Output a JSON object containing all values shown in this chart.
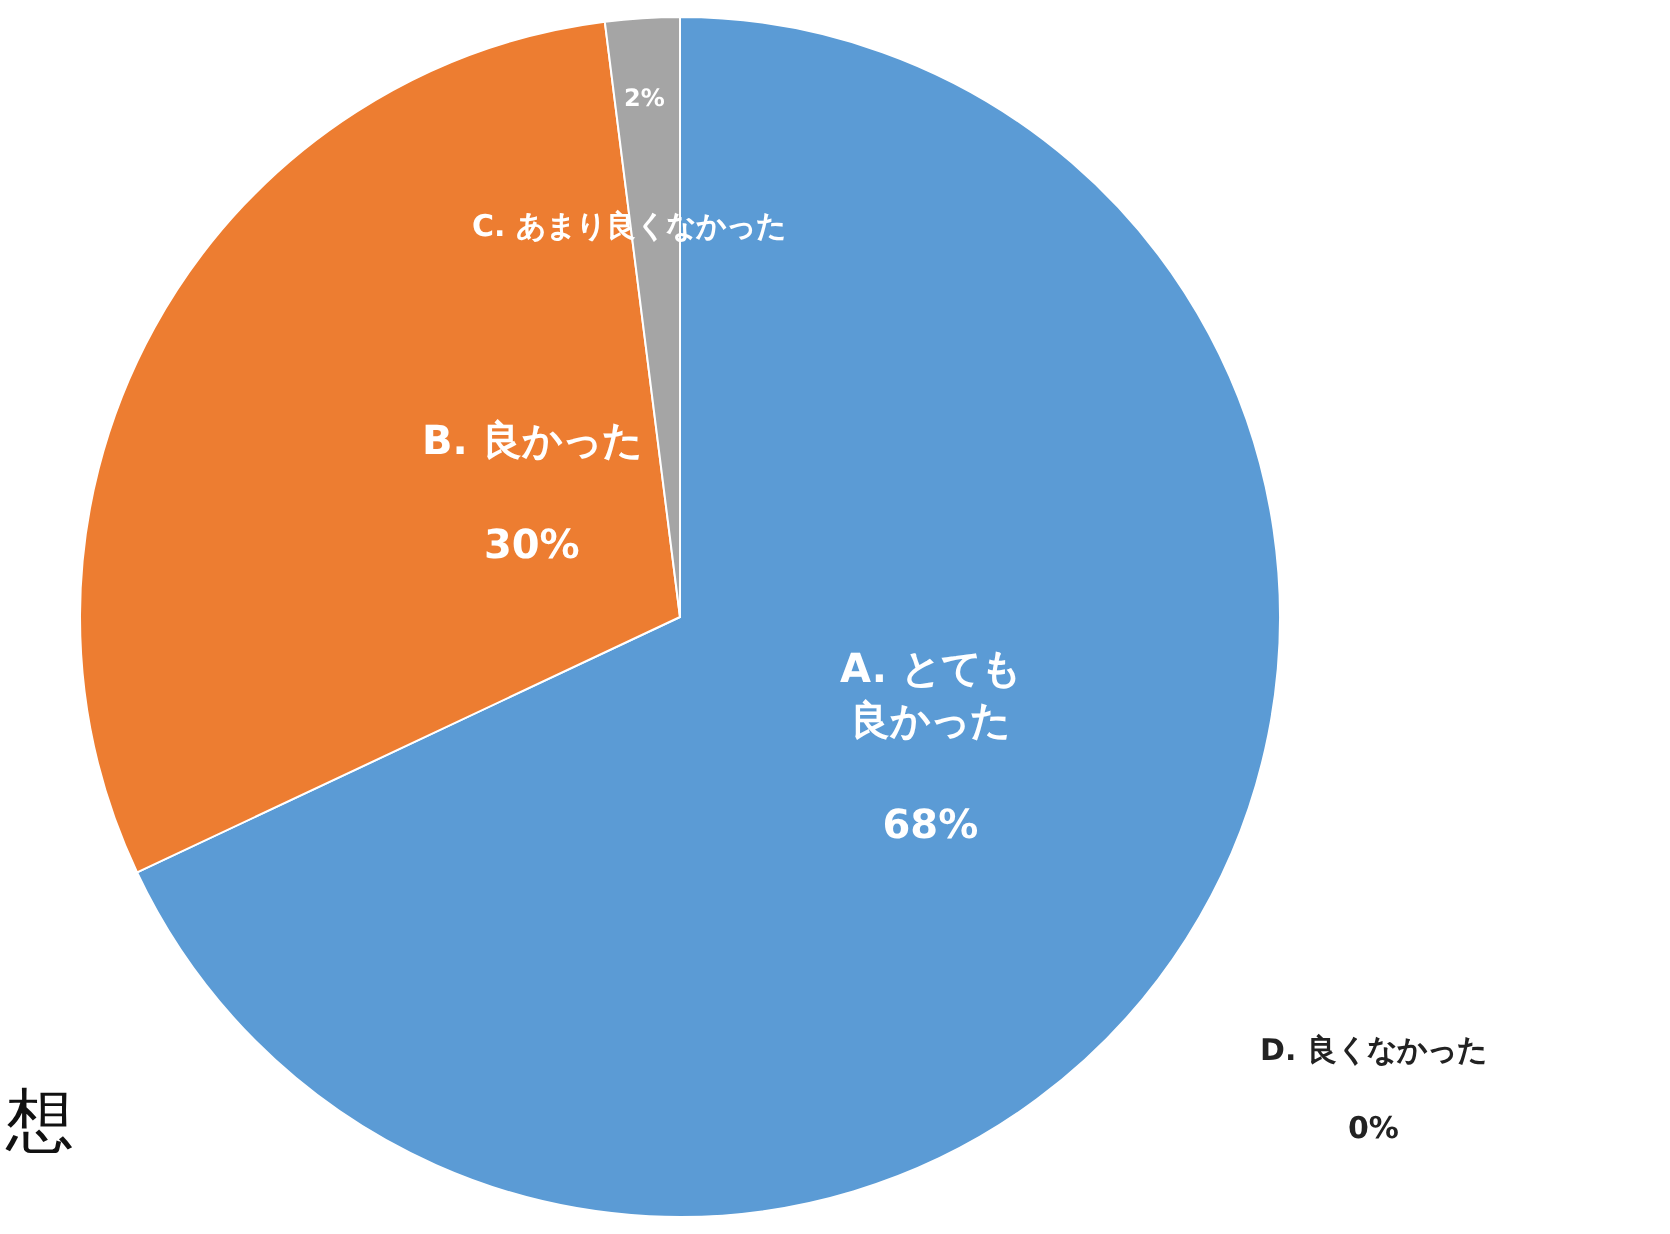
{
  "chart_data": {
    "type": "pie",
    "categories": [
      "A. とても良かった",
      "B. 良かった",
      "C. あまり良くなかった",
      "D. 良くなかった"
    ],
    "values": [
      68,
      30,
      2,
      0
    ],
    "colors": [
      "#5b9bd5",
      "#ed7d31",
      "#a5a5a5",
      "#ffc000"
    ],
    "value_labels": [
      "68%",
      "30%",
      "2%",
      "0%"
    ],
    "legend": false,
    "annotations": [
      "想"
    ]
  }
}
